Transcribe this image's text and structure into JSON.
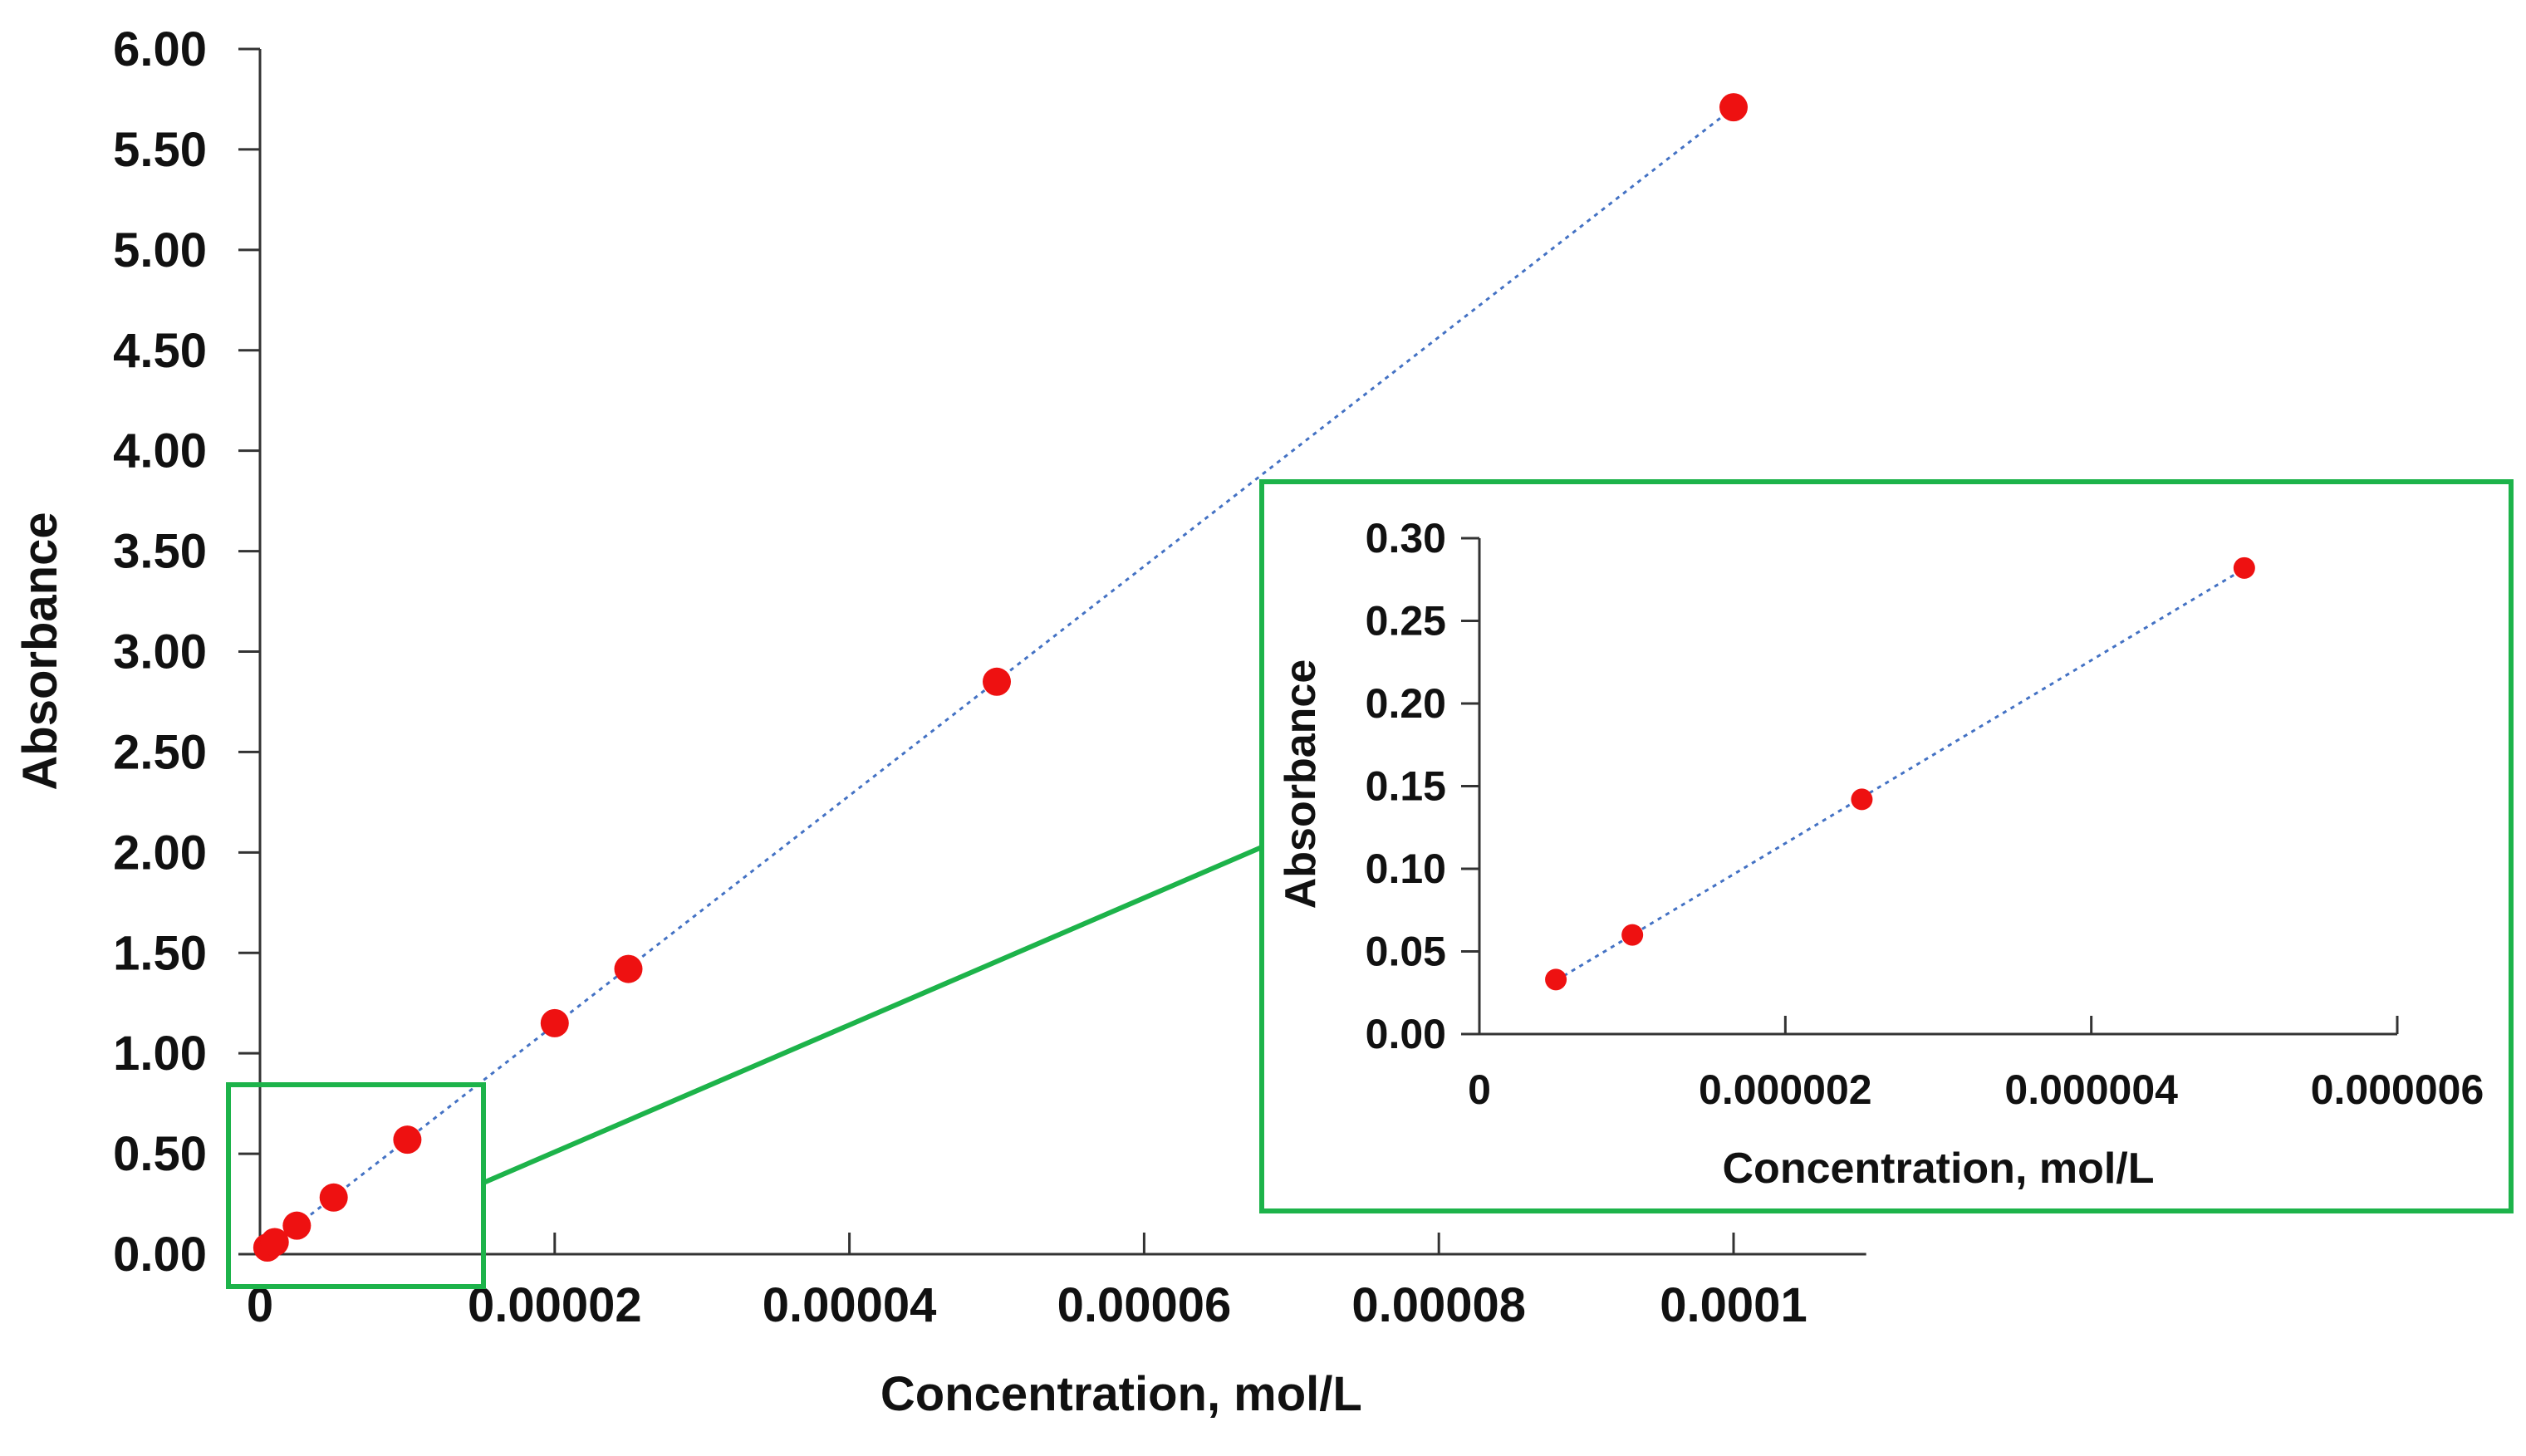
{
  "chart_data": [
    {
      "type": "scatter",
      "xlabel": "Concentration, mol/L",
      "ylabel": "Absorbance",
      "x_ticks": [
        "0",
        "0.00002",
        "0.00004",
        "0.00006",
        "0.00008",
        "0.0001"
      ],
      "y_ticks": [
        "0.00",
        "0.50",
        "1.00",
        "1.50",
        "2.00",
        "2.50",
        "3.00",
        "3.50",
        "4.00",
        "4.50",
        "5.00",
        "5.50",
        "6.00"
      ],
      "xlim": [
        0,
        0.000109
      ],
      "ylim": [
        0,
        6
      ],
      "series": [
        {
          "x": [
            5e-07,
            1e-06,
            2.5e-06,
            5e-06,
            1e-05,
            2e-05,
            2.5e-05,
            5e-05,
            0.0001
          ],
          "y": [
            0.033,
            0.06,
            0.142,
            0.282,
            0.57,
            1.15,
            1.42,
            2.85,
            5.71
          ]
        }
      ],
      "trendline": {
        "style": "dotted",
        "color": "#4472c4"
      },
      "marker_color": "#ee1111",
      "grid": false,
      "legend": "none"
    },
    {
      "type": "scatter",
      "xlabel": "Concentration, mol/L",
      "ylabel": "Absorbance",
      "x_ticks": [
        "0",
        "0.000002",
        "0.000004",
        "0.000006"
      ],
      "y_ticks": [
        "0.00",
        "0.05",
        "0.10",
        "0.15",
        "0.20",
        "0.25",
        "0.30"
      ],
      "xlim": [
        0,
        6e-06
      ],
      "ylim": [
        0,
        0.3
      ],
      "series": [
        {
          "x": [
            5e-07,
            1e-06,
            2.5e-06,
            5e-06
          ],
          "y": [
            0.033,
            0.06,
            0.142,
            0.282
          ]
        }
      ],
      "trendline": {
        "style": "dotted",
        "color": "#4472c4"
      },
      "marker_color": "#ee1111",
      "zoom_frame_color": "#1db34a",
      "grid": false,
      "legend": "none"
    }
  ]
}
